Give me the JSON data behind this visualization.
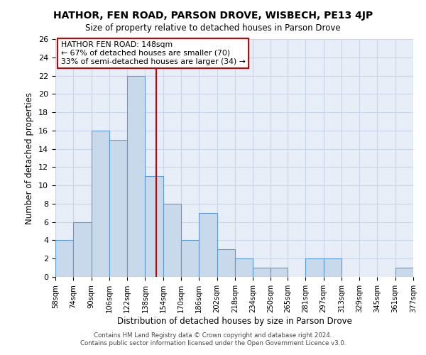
{
  "title": "HATHOR, FEN ROAD, PARSON DROVE, WISBECH, PE13 4JP",
  "subtitle": "Size of property relative to detached houses in Parson Drove",
  "xlabel": "Distribution of detached houses by size in Parson Drove",
  "ylabel": "Number of detached properties",
  "bar_values": [
    4,
    6,
    16,
    15,
    22,
    11,
    8,
    4,
    7,
    3,
    2,
    1,
    1,
    0,
    2,
    2,
    0,
    0,
    0,
    1,
    0
  ],
  "bin_edges": [
    58,
    74,
    90,
    106,
    122,
    138,
    154,
    170,
    186,
    202,
    218,
    234,
    250,
    265,
    281,
    297,
    313,
    329,
    345,
    361,
    377
  ],
  "bin_labels": [
    "58sqm",
    "74sqm",
    "90sqm",
    "106sqm",
    "122sqm",
    "138sqm",
    "154sqm",
    "170sqm",
    "186sqm",
    "202sqm",
    "218sqm",
    "234sqm",
    "250sqm",
    "265sqm",
    "281sqm",
    "297sqm",
    "313sqm",
    "329sqm",
    "345sqm",
    "361sqm",
    "377sqm"
  ],
  "bar_color": "#c8d9ec",
  "bar_edge_color": "#5b9bd5",
  "vline_x": 148,
  "vline_color": "#cc0000",
  "annotation_title": "HATHOR FEN ROAD: 148sqm",
  "annotation_line1": "← 67% of detached houses are smaller (70)",
  "annotation_line2": "33% of semi-detached houses are larger (34) →",
  "annotation_box_edge": "#cc0000",
  "ylim": [
    0,
    26
  ],
  "yticks": [
    0,
    2,
    4,
    6,
    8,
    10,
    12,
    14,
    16,
    18,
    20,
    22,
    24,
    26
  ],
  "footnote1": "Contains HM Land Registry data © Crown copyright and database right 2024.",
  "footnote2": "Contains public sector information licensed under the Open Government Licence v3.0.",
  "background_color": "#ffffff",
  "grid_color": "#c8d4e8"
}
